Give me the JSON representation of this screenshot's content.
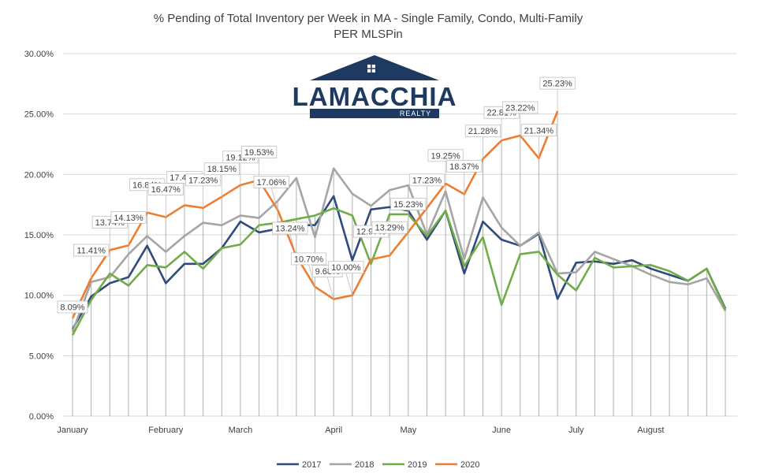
{
  "chart_data": {
    "type": "line",
    "title": "% Pending of Total Inventory per Week in MA - Single Family, Condo, Multi-Family",
    "subtitle": "PER MLSPin",
    "xlabel": "",
    "ylabel": "",
    "ylim": [
      0,
      30
    ],
    "y_ticks": [
      "0.00%",
      "5.00%",
      "10.00%",
      "15.00%",
      "20.00%",
      "25.00%",
      "30.00%"
    ],
    "x_month_labels": [
      "January",
      "February",
      "March",
      "April",
      "May",
      "June",
      "July",
      "August"
    ],
    "x_month_weeks": [
      0,
      5,
      9,
      14,
      18,
      23,
      27,
      31
    ],
    "weeks": 36,
    "grid": "horizontal",
    "legend": "bottom",
    "series": [
      {
        "name": "2017",
        "color": "#2f4b7c",
        "values": [
          7.2,
          9.9,
          11.0,
          11.5,
          14.1,
          11.0,
          12.6,
          12.6,
          13.9,
          16.1,
          15.2,
          15.5,
          15.8,
          15.8,
          18.2,
          12.9,
          17.1,
          17.3,
          17.0,
          14.6,
          17.0,
          11.8,
          16.1,
          14.6,
          14.1,
          15.1,
          9.7,
          12.7,
          12.8,
          12.6,
          12.9,
          12.2,
          11.7,
          11.2,
          12.2,
          8.9
        ]
      },
      {
        "name": "2018",
        "color": "#a5a5a5",
        "values": [
          7.0,
          11.1,
          11.5,
          13.4,
          14.9,
          13.6,
          14.9,
          16.0,
          15.8,
          16.6,
          16.4,
          17.8,
          19.7,
          14.8,
          20.5,
          18.4,
          17.4,
          18.7,
          19.1,
          15.0,
          18.6,
          13.0,
          18.1,
          15.6,
          14.1,
          15.2,
          11.8,
          11.9,
          13.6,
          13.0,
          12.4,
          11.7,
          11.1,
          10.9,
          11.4,
          8.7
        ]
      },
      {
        "name": "2019",
        "color": "#70ad47",
        "values": [
          6.7,
          9.6,
          11.8,
          10.8,
          12.5,
          12.3,
          13.6,
          12.2,
          13.9,
          14.2,
          15.8,
          16.0,
          16.3,
          16.6,
          17.2,
          16.6,
          12.6,
          16.7,
          16.7,
          14.9,
          17.0,
          12.4,
          14.8,
          9.2,
          13.4,
          13.6,
          11.7,
          10.4,
          13.1,
          12.3,
          12.4,
          12.5,
          12.0,
          11.2,
          12.2,
          8.8
        ]
      },
      {
        "name": "2020",
        "color": "#ed7d31",
        "values": [
          8.09,
          11.41,
          13.74,
          14.13,
          16.84,
          16.47,
          17.45,
          17.23,
          18.15,
          19.12,
          19.53,
          17.06,
          13.24,
          10.7,
          9.68,
          10.0,
          12.97,
          13.29,
          15.23,
          17.23,
          19.25,
          18.37,
          21.28,
          22.81,
          23.22,
          21.34,
          25.23
        ]
      }
    ],
    "data_labels_2020": [
      "8.09%",
      "11.41%",
      "13.74%",
      "14.13%",
      "16.84%",
      "16.47%",
      "17.45%",
      "17.23%",
      "18.15%",
      "19.12%",
      "19.53%",
      "17.06%",
      "13.24%",
      "10.70%",
      "9.68%",
      "10.00%",
      "12.97%",
      "13.29%",
      "15.23%",
      "17.23%",
      "19.25%",
      "18.37%",
      "21.28%",
      "22.81%",
      "23.22%",
      "21.34%",
      "25.23%"
    ]
  },
  "logo": {
    "name": "LAMACCHIA",
    "tagline": "REALTY"
  }
}
